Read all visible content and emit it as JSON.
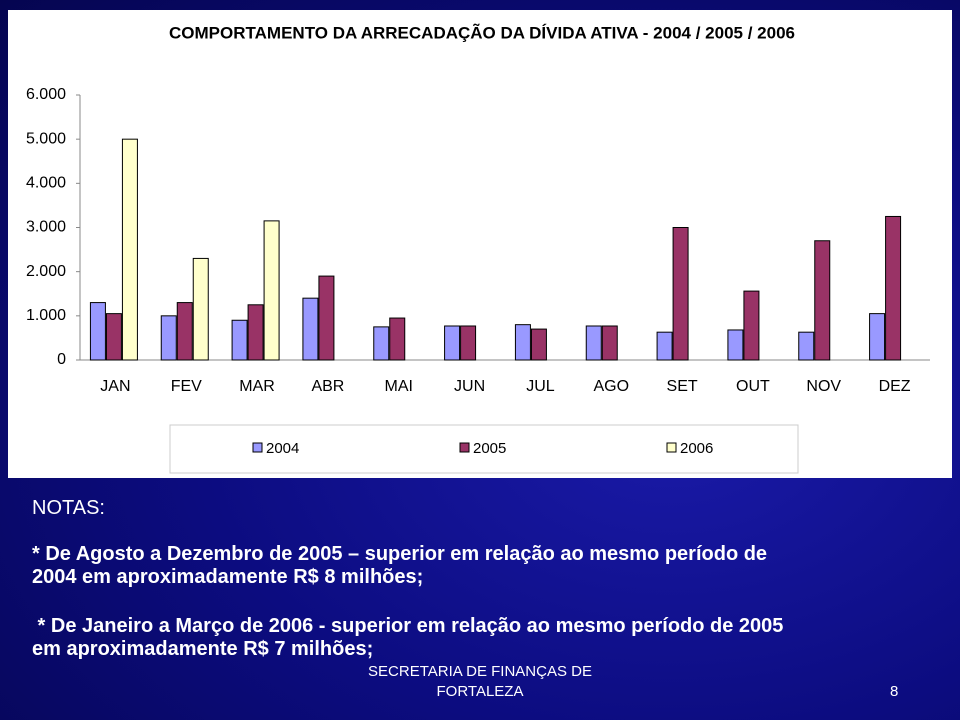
{
  "chart_data": {
    "type": "bar",
    "title": "COMPORTAMENTO DA ARRECADAÇÃO DA DÍVIDA ATIVA - 2004 / 2005 / 2006",
    "categories": [
      "JAN",
      "FEV",
      "MAR",
      "ABR",
      "MAI",
      "JUN",
      "JUL",
      "AGO",
      "SET",
      "OUT",
      "NOV",
      "DEZ"
    ],
    "series": [
      {
        "name": "2004",
        "color": "#9999ff",
        "values": [
          1300,
          1000,
          900,
          1400,
          750,
          770,
          800,
          770,
          630,
          680,
          630,
          1050
        ]
      },
      {
        "name": "2005",
        "color": "#993366",
        "values": [
          1050,
          1300,
          1250,
          1900,
          950,
          770,
          700,
          770,
          3000,
          1560,
          2700,
          3250
        ]
      },
      {
        "name": "2006",
        "color": "#ffffcc",
        "values": [
          5000,
          2300,
          3150,
          null,
          null,
          null,
          null,
          null,
          null,
          null,
          null,
          null
        ]
      }
    ],
    "ylim": [
      0,
      6000
    ],
    "yticks": [
      0,
      {
        "value": 1000,
        "label": "1.000"
      },
      {
        "value": 2000,
        "label": "2.000"
      },
      {
        "value": 3000,
        "label": "3.000"
      },
      {
        "value": 4000,
        "label": "4.000"
      },
      {
        "value": 5000,
        "label": "5.000"
      },
      {
        "value": 6000,
        "label": "6.000"
      }
    ],
    "legend": "bottom"
  },
  "notes": {
    "heading": "NOTAS:",
    "items": [
      [
        "* De Agosto a Dezembro de 2005 – superior em relação ao mesmo período de",
        "2004 em aproximadamente R$ 8 milhões;"
      ],
      [
        " * De Janeiro a Março de 2006 - superior em relação ao mesmo período de 2005",
        "em aproximadamente R$ 7 milhões;"
      ]
    ]
  },
  "footer": {
    "lines": [
      "SECRETARIA DE FINANÇAS DE",
      "FORTALEZA"
    ],
    "page": "8"
  }
}
